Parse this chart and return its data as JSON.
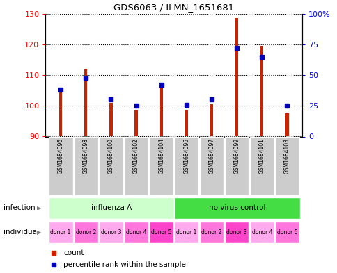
{
  "title": "GDS6063 / ILMN_1651681",
  "samples": [
    "GSM1684096",
    "GSM1684098",
    "GSM1684100",
    "GSM1684102",
    "GSM1684104",
    "GSM1684095",
    "GSM1684097",
    "GSM1684099",
    "GSM1684101",
    "GSM1684103"
  ],
  "bar_values": [
    104.5,
    112.0,
    101.0,
    98.5,
    106.0,
    98.5,
    100.5,
    128.5,
    119.5,
    97.5
  ],
  "percentile_values": [
    38,
    48,
    30,
    25,
    42,
    26,
    30,
    72,
    65,
    25
  ],
  "ylim_left": [
    90,
    130
  ],
  "ylim_right": [
    0,
    100
  ],
  "yticks_left": [
    90,
    100,
    110,
    120,
    130
  ],
  "yticks_right": [
    0,
    25,
    50,
    75,
    100
  ],
  "ytick_labels_right": [
    "0",
    "25",
    "50",
    "75",
    "100%"
  ],
  "bar_color": "#cc2200",
  "dot_color": "#0000bb",
  "bar_bottom": 90,
  "infection_groups": [
    {
      "label": "influenza A",
      "start": 0,
      "end": 5,
      "color": "#ccffcc"
    },
    {
      "label": "no virus control",
      "start": 5,
      "end": 10,
      "color": "#44dd44"
    }
  ],
  "individual_labels": [
    "donor 1",
    "donor 2",
    "donor 3",
    "donor 4",
    "donor 5",
    "donor 1",
    "donor 2",
    "donor 3",
    "donor 4",
    "donor 5"
  ],
  "individual_colors": [
    "#ffaaee",
    "#ff77dd",
    "#ffaaee",
    "#ff77dd",
    "#ff44cc",
    "#ffaaee",
    "#ff77dd",
    "#ff44cc",
    "#ffaaee",
    "#ff77dd"
  ],
  "legend_count_color": "#cc2200",
  "legend_dot_color": "#0000bb",
  "sample_box_color": "#cccccc",
  "plot_bg": "#ffffff"
}
